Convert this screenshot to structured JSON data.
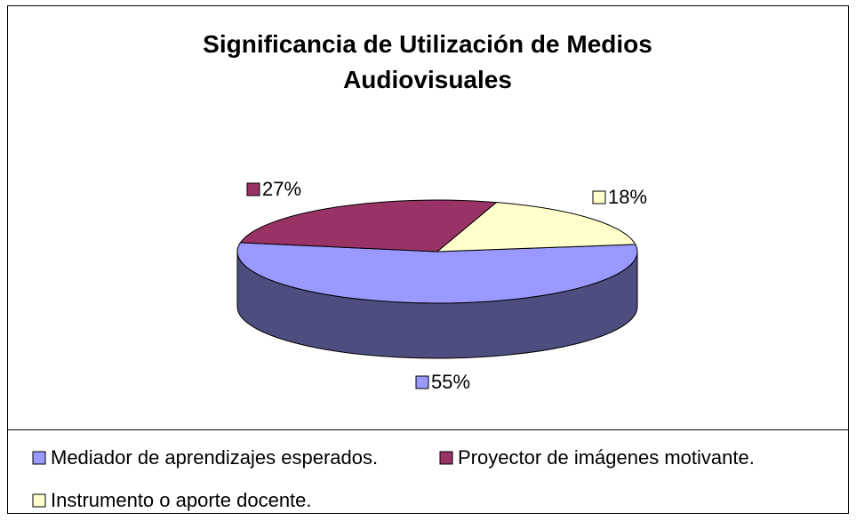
{
  "chart_data": {
    "type": "pie3d",
    "title": "Significancia de Utilización de Medios Audiovisuales",
    "categories": [
      "Mediador de aprendizajes esperados.",
      "Proyector de imágenes motivante.",
      "Instrumento o aporte docente."
    ],
    "values": [
      55,
      27,
      18
    ],
    "value_labels": [
      "55%",
      "27%",
      "18%"
    ],
    "colors": [
      "#9999ff",
      "#993366",
      "#ffffcc"
    ],
    "legend": "bottom"
  }
}
